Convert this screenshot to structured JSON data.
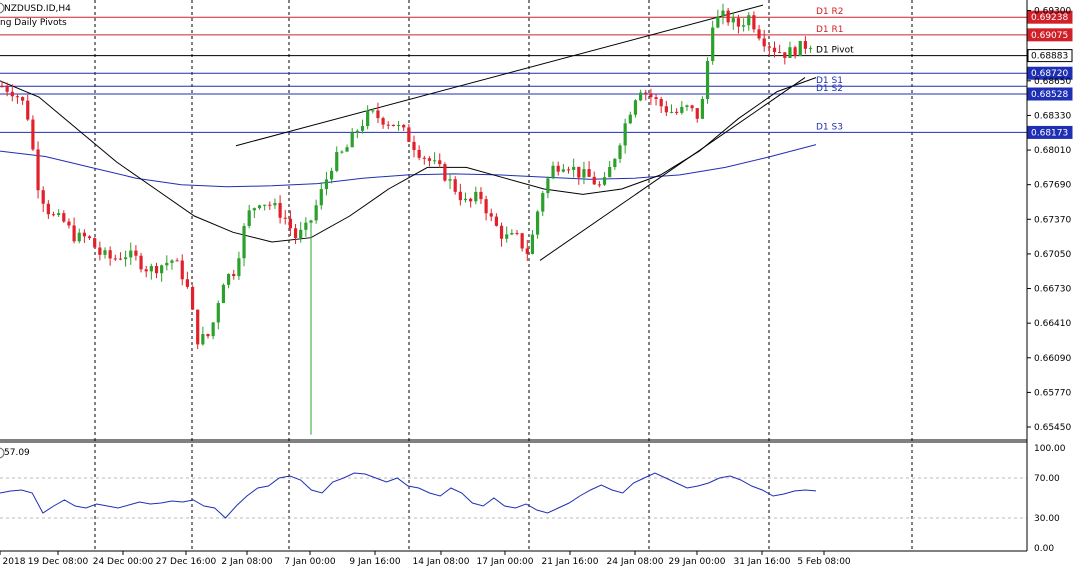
{
  "window": {
    "symbol_title": "NZDUSD.ID,H4",
    "indicator_title": "ng Daily Pivots"
  },
  "colors": {
    "bull": "#2ca02c",
    "bear": "#e0202a",
    "resistance": "#d0202a",
    "support": "#1f2fb4",
    "pivot": "#000000",
    "ma_slow": "#1f2fb4",
    "ma_fast": "#000000",
    "oscillator": "#1f2fb4"
  },
  "chart_data": [
    {
      "type": "candlestick",
      "title": "NZDUSD.ID,H4",
      "price_axis_labels": [
        "0.65450",
        "0.65770",
        "0.66090",
        "0.66410",
        "0.66730",
        "0.67050",
        "0.67370",
        "0.67690",
        "0.68010",
        "0.68330",
        "0.68650",
        "0.69300"
      ],
      "time_axis_labels": [
        "2018",
        "19 Dec 08:00",
        "24 Dec 00:00",
        "27 Dec 16:00",
        "2 Jan 08:00",
        "7 Jan 00:00",
        "9 Jan 16:00",
        "14 Jan 08:00",
        "17 Jan 00:00",
        "21 Jan 16:00",
        "24 Jan 08:00",
        "29 Jan 00:00",
        "31 Jan 16:00",
        "5 Feb 08:00"
      ],
      "ylim": [
        0.6533,
        0.6936
      ],
      "pivot_levels": [
        {
          "name": "D1 R2",
          "value": 0.69238,
          "label": "0.69238",
          "kind": "resistance"
        },
        {
          "name": "D1 R1",
          "value": 0.69075,
          "label": "0.69075",
          "kind": "resistance"
        },
        {
          "name": "D1 Pivot",
          "value": 0.68883,
          "label": "0.68883",
          "kind": "pivot"
        },
        {
          "name": "",
          "value": 0.6872,
          "label": "0.68720",
          "kind": "support"
        },
        {
          "name": "D1 S1",
          "value": 0.686,
          "label": "",
          "kind": "support"
        },
        {
          "name": "D1 S2",
          "value": 0.68528,
          "label": "0.68528",
          "kind": "support"
        },
        {
          "name": "D1 S3",
          "value": 0.68173,
          "label": "0.68173",
          "kind": "support"
        }
      ],
      "series": [
        {
          "name": "close_anchors",
          "values": [
            0.686,
            0.6855,
            0.684,
            0.6765,
            0.674,
            0.6735,
            0.672,
            0.672,
            0.6705,
            0.67,
            0.6705,
            0.67,
            0.669,
            0.6695,
            0.67,
            0.668,
            0.6625,
            0.663,
            0.668,
            0.669,
            0.674,
            0.6755,
            0.675,
            0.674,
            0.672,
            0.673,
            0.676,
            0.679,
            0.68,
            0.682,
            0.6835,
            0.683,
            0.6825,
            0.6815,
            0.68,
            0.679,
            0.678,
            0.6765,
            0.675,
            0.676,
            0.6735,
            0.672,
            0.672,
            0.6705,
            0.676,
            0.6785,
            0.679,
            0.678,
            0.6775,
            0.6765,
            0.6795,
            0.683,
            0.686,
            0.685,
            0.684,
            0.6835,
            0.684,
            0.683,
            0.692,
            0.6925,
            0.6915,
            0.6925,
            0.6905,
            0.6895,
            0.689,
            0.6895,
            0.69
          ]
        },
        {
          "name": "ma_slow",
          "values": [
            0.68,
            0.6795,
            0.6785,
            0.6775,
            0.6769,
            0.6767,
            0.6768,
            0.677,
            0.6775,
            0.6778,
            0.6779,
            0.6778,
            0.6776,
            0.6774,
            0.6775,
            0.6778,
            0.6785,
            0.6795,
            0.6806
          ]
        },
        {
          "name": "ma_fast",
          "values": [
            0.6865,
            0.685,
            0.682,
            0.679,
            0.6765,
            0.674,
            0.6725,
            0.6716,
            0.672,
            0.674,
            0.6765,
            0.6785,
            0.6785,
            0.6775,
            0.6765,
            0.676,
            0.6765,
            0.6778,
            0.68,
            0.683,
            0.6855,
            0.6868
          ]
        },
        {
          "name": "trend_upper",
          "values": [
            0.6805,
            0.6935
          ]
        },
        {
          "name": "trend_lower",
          "values": [
            0.6699,
            0.6868
          ]
        }
      ]
    },
    {
      "type": "line",
      "title": "57.09",
      "y_axis_labels": [
        "100.00",
        "70.00",
        "30.00",
        "0.00"
      ],
      "ylim": [
        0,
        100
      ],
      "levels": [
        70,
        30
      ],
      "series": [
        {
          "name": "",
          "values": [
            55,
            57,
            58,
            55,
            35,
            42,
            48,
            42,
            40,
            44,
            42,
            40,
            43,
            46,
            44,
            45,
            47,
            46,
            48,
            42,
            40,
            30,
            42,
            52,
            60,
            62,
            70,
            72,
            68,
            58,
            55,
            66,
            70,
            75,
            74,
            70,
            66,
            70,
            62,
            60,
            55,
            52,
            60,
            55,
            45,
            42,
            50,
            42,
            40,
            44,
            38,
            35,
            40,
            45,
            52,
            58,
            63,
            58,
            55,
            65,
            70,
            75,
            70,
            65,
            60,
            62,
            65,
            70,
            72,
            68,
            62,
            58,
            52,
            54,
            57,
            58,
            57.09
          ]
        }
      ]
    }
  ]
}
